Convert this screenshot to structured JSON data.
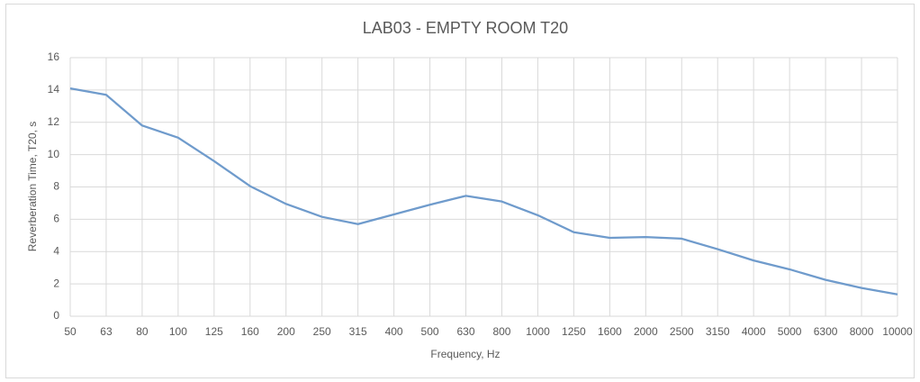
{
  "chart_data": {
    "type": "line",
    "title": "LAB03 - EMPTY ROOM T20",
    "x_label": "Frequency, Hz",
    "y_label": "Reverberation Time, T20, s",
    "categories": [
      "50",
      "63",
      "80",
      "100",
      "125",
      "160",
      "200",
      "250",
      "315",
      "400",
      "500",
      "630",
      "800",
      "1000",
      "1250",
      "1600",
      "2000",
      "2500",
      "3150",
      "4000",
      "5000",
      "6300",
      "8000",
      "10000"
    ],
    "series": [
      {
        "name": "T20",
        "color": "#6f9bcc",
        "values": [
          14.1,
          13.7,
          11.8,
          11.05,
          9.6,
          8.05,
          6.95,
          6.15,
          5.7,
          6.3,
          6.9,
          7.45,
          7.1,
          6.25,
          5.2,
          4.85,
          4.9,
          4.8,
          4.15,
          3.45,
          2.9,
          2.25,
          1.75,
          1.35
        ]
      }
    ],
    "ylim": [
      0,
      16
    ],
    "yticks": [
      0,
      2,
      4,
      6,
      8,
      10,
      12,
      14,
      16
    ],
    "grid": true
  }
}
